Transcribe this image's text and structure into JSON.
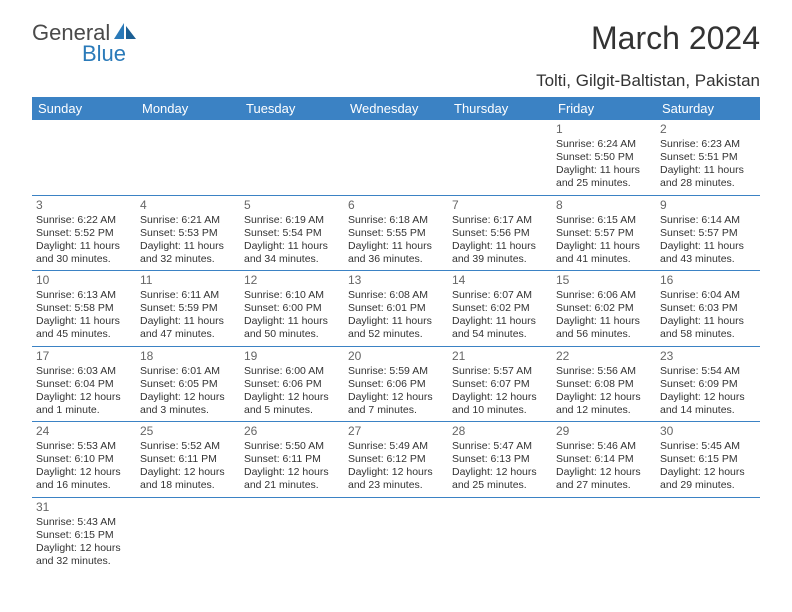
{
  "brand": {
    "part1": "General",
    "part2": "Blue"
  },
  "title": "March 2024",
  "location": "Tolti, Gilgit-Baltistan, Pakistan",
  "header_bg": "#3b82c4",
  "weekdays": [
    "Sunday",
    "Monday",
    "Tuesday",
    "Wednesday",
    "Thursday",
    "Friday",
    "Saturday"
  ],
  "weeks": [
    [
      null,
      null,
      null,
      null,
      null,
      {
        "n": "1",
        "sr": "Sunrise: 6:24 AM",
        "ss": "Sunset: 5:50 PM",
        "dl": "Daylight: 11 hours and 25 minutes."
      },
      {
        "n": "2",
        "sr": "Sunrise: 6:23 AM",
        "ss": "Sunset: 5:51 PM",
        "dl": "Daylight: 11 hours and 28 minutes."
      }
    ],
    [
      {
        "n": "3",
        "sr": "Sunrise: 6:22 AM",
        "ss": "Sunset: 5:52 PM",
        "dl": "Daylight: 11 hours and 30 minutes."
      },
      {
        "n": "4",
        "sr": "Sunrise: 6:21 AM",
        "ss": "Sunset: 5:53 PM",
        "dl": "Daylight: 11 hours and 32 minutes."
      },
      {
        "n": "5",
        "sr": "Sunrise: 6:19 AM",
        "ss": "Sunset: 5:54 PM",
        "dl": "Daylight: 11 hours and 34 minutes."
      },
      {
        "n": "6",
        "sr": "Sunrise: 6:18 AM",
        "ss": "Sunset: 5:55 PM",
        "dl": "Daylight: 11 hours and 36 minutes."
      },
      {
        "n": "7",
        "sr": "Sunrise: 6:17 AM",
        "ss": "Sunset: 5:56 PM",
        "dl": "Daylight: 11 hours and 39 minutes."
      },
      {
        "n": "8",
        "sr": "Sunrise: 6:15 AM",
        "ss": "Sunset: 5:57 PM",
        "dl": "Daylight: 11 hours and 41 minutes."
      },
      {
        "n": "9",
        "sr": "Sunrise: 6:14 AM",
        "ss": "Sunset: 5:57 PM",
        "dl": "Daylight: 11 hours and 43 minutes."
      }
    ],
    [
      {
        "n": "10",
        "sr": "Sunrise: 6:13 AM",
        "ss": "Sunset: 5:58 PM",
        "dl": "Daylight: 11 hours and 45 minutes."
      },
      {
        "n": "11",
        "sr": "Sunrise: 6:11 AM",
        "ss": "Sunset: 5:59 PM",
        "dl": "Daylight: 11 hours and 47 minutes."
      },
      {
        "n": "12",
        "sr": "Sunrise: 6:10 AM",
        "ss": "Sunset: 6:00 PM",
        "dl": "Daylight: 11 hours and 50 minutes."
      },
      {
        "n": "13",
        "sr": "Sunrise: 6:08 AM",
        "ss": "Sunset: 6:01 PM",
        "dl": "Daylight: 11 hours and 52 minutes."
      },
      {
        "n": "14",
        "sr": "Sunrise: 6:07 AM",
        "ss": "Sunset: 6:02 PM",
        "dl": "Daylight: 11 hours and 54 minutes."
      },
      {
        "n": "15",
        "sr": "Sunrise: 6:06 AM",
        "ss": "Sunset: 6:02 PM",
        "dl": "Daylight: 11 hours and 56 minutes."
      },
      {
        "n": "16",
        "sr": "Sunrise: 6:04 AM",
        "ss": "Sunset: 6:03 PM",
        "dl": "Daylight: 11 hours and 58 minutes."
      }
    ],
    [
      {
        "n": "17",
        "sr": "Sunrise: 6:03 AM",
        "ss": "Sunset: 6:04 PM",
        "dl": "Daylight: 12 hours and 1 minute."
      },
      {
        "n": "18",
        "sr": "Sunrise: 6:01 AM",
        "ss": "Sunset: 6:05 PM",
        "dl": "Daylight: 12 hours and 3 minutes."
      },
      {
        "n": "19",
        "sr": "Sunrise: 6:00 AM",
        "ss": "Sunset: 6:06 PM",
        "dl": "Daylight: 12 hours and 5 minutes."
      },
      {
        "n": "20",
        "sr": "Sunrise: 5:59 AM",
        "ss": "Sunset: 6:06 PM",
        "dl": "Daylight: 12 hours and 7 minutes."
      },
      {
        "n": "21",
        "sr": "Sunrise: 5:57 AM",
        "ss": "Sunset: 6:07 PM",
        "dl": "Daylight: 12 hours and 10 minutes."
      },
      {
        "n": "22",
        "sr": "Sunrise: 5:56 AM",
        "ss": "Sunset: 6:08 PM",
        "dl": "Daylight: 12 hours and 12 minutes."
      },
      {
        "n": "23",
        "sr": "Sunrise: 5:54 AM",
        "ss": "Sunset: 6:09 PM",
        "dl": "Daylight: 12 hours and 14 minutes."
      }
    ],
    [
      {
        "n": "24",
        "sr": "Sunrise: 5:53 AM",
        "ss": "Sunset: 6:10 PM",
        "dl": "Daylight: 12 hours and 16 minutes."
      },
      {
        "n": "25",
        "sr": "Sunrise: 5:52 AM",
        "ss": "Sunset: 6:11 PM",
        "dl": "Daylight: 12 hours and 18 minutes."
      },
      {
        "n": "26",
        "sr": "Sunrise: 5:50 AM",
        "ss": "Sunset: 6:11 PM",
        "dl": "Daylight: 12 hours and 21 minutes."
      },
      {
        "n": "27",
        "sr": "Sunrise: 5:49 AM",
        "ss": "Sunset: 6:12 PM",
        "dl": "Daylight: 12 hours and 23 minutes."
      },
      {
        "n": "28",
        "sr": "Sunrise: 5:47 AM",
        "ss": "Sunset: 6:13 PM",
        "dl": "Daylight: 12 hours and 25 minutes."
      },
      {
        "n": "29",
        "sr": "Sunrise: 5:46 AM",
        "ss": "Sunset: 6:14 PM",
        "dl": "Daylight: 12 hours and 27 minutes."
      },
      {
        "n": "30",
        "sr": "Sunrise: 5:45 AM",
        "ss": "Sunset: 6:15 PM",
        "dl": "Daylight: 12 hours and 29 minutes."
      }
    ],
    [
      {
        "n": "31",
        "sr": "Sunrise: 5:43 AM",
        "ss": "Sunset: 6:15 PM",
        "dl": "Daylight: 12 hours and 32 minutes."
      },
      null,
      null,
      null,
      null,
      null,
      null
    ]
  ]
}
